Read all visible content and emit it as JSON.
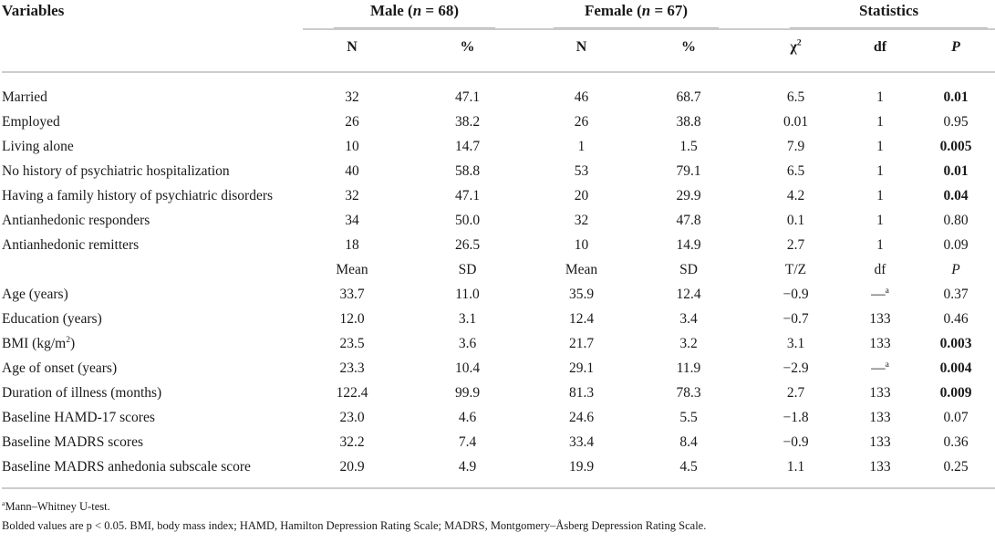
{
  "page": {
    "background_color": "#ffffff",
    "text_color": "#1a1a1a",
    "rule_color": "#cccccc",
    "group_rule_color": "#b8b8b8"
  },
  "table": {
    "header": {
      "variables_label": "Variables",
      "male_group": {
        "pre": "Male (",
        "var": "n",
        "post": " = 68)"
      },
      "female_group": {
        "pre": "Female (",
        "var": "n",
        "post": " = 67)"
      },
      "statistics_label": "Statistics"
    },
    "subheader": [
      "N",
      "%",
      "N",
      "%",
      "χ^2",
      "df",
      "P"
    ],
    "mid_header": [
      "Mean",
      "SD",
      "Mean",
      "SD",
      "T/Z",
      "df",
      "P"
    ],
    "categorical_rows": [
      {
        "label": "Married",
        "cells": [
          "32",
          "47.1",
          "46",
          "68.7",
          "6.5",
          "1",
          "0.01"
        ],
        "p_bold": true
      },
      {
        "label": "Employed",
        "cells": [
          "26",
          "38.2",
          "26",
          "38.8",
          "0.01",
          "1",
          "0.95"
        ],
        "p_bold": false
      },
      {
        "label": "Living alone",
        "cells": [
          "10",
          "14.7",
          "1",
          "1.5",
          "7.9",
          "1",
          "0.005"
        ],
        "p_bold": true
      },
      {
        "label": "No history of psychiatric hospitalization",
        "cells": [
          "40",
          "58.8",
          "53",
          "79.1",
          "6.5",
          "1",
          "0.01"
        ],
        "p_bold": true
      },
      {
        "label": "Having a family history of psychiatric disorders",
        "cells": [
          "32",
          "47.1",
          "20",
          "29.9",
          "4.2",
          "1",
          "0.04"
        ],
        "p_bold": true
      },
      {
        "label": "Antianhedonic responders",
        "cells": [
          "34",
          "50.0",
          "32",
          "47.8",
          "0.1",
          "1",
          "0.80"
        ],
        "p_bold": false
      },
      {
        "label": "Antianhedonic remitters",
        "cells": [
          "18",
          "26.5",
          "10",
          "14.9",
          "2.7",
          "1",
          "0.09"
        ],
        "p_bold": false
      }
    ],
    "continuous_rows": [
      {
        "label": "Age (years)",
        "cells": [
          "33.7",
          "11.0",
          "35.9",
          "12.4",
          "−0.9",
          "—^a",
          "0.37"
        ],
        "p_bold": false
      },
      {
        "label": "Education (years)",
        "cells": [
          "12.0",
          "3.1",
          "12.4",
          "3.4",
          "−0.7",
          "133",
          "0.46"
        ],
        "p_bold": false
      },
      {
        "label": "BMI (kg/m^2^)",
        "cells": [
          "23.5",
          "3.6",
          "21.7",
          "3.2",
          "3.1",
          "133",
          "0.003"
        ],
        "p_bold": true
      },
      {
        "label": "Age of onset (years)",
        "cells": [
          "23.3",
          "10.4",
          "29.1",
          "11.9",
          "−2.9",
          "—^a",
          "0.004"
        ],
        "p_bold": true
      },
      {
        "label": "Duration of illness (months)",
        "cells": [
          "122.4",
          "99.9",
          "81.3",
          "78.3",
          "2.7",
          "133",
          "0.009"
        ],
        "p_bold": true
      },
      {
        "label": "Baseline HAMD-17 scores",
        "cells": [
          "23.0",
          "4.6",
          "24.6",
          "5.5",
          "−1.8",
          "133",
          "0.07"
        ],
        "p_bold": false
      },
      {
        "label": "Baseline MADRS scores",
        "cells": [
          "32.2",
          "7.4",
          "33.4",
          "8.4",
          "−0.9",
          "133",
          "0.36"
        ],
        "p_bold": false
      },
      {
        "label": "Baseline MADRS anhedonia subscale score",
        "cells": [
          "20.9",
          "4.9",
          "19.9",
          "4.5",
          "1.1",
          "133",
          "0.25"
        ],
        "p_bold": false
      }
    ],
    "footnotes": [
      "^a^Mann–Whitney U-test.",
      "Bolded values are p < 0.05. BMI, body mass index; HAMD, Hamilton Depression Rating Scale; MADRS, Montgomery–Åsberg Depression Rating Scale."
    ]
  }
}
